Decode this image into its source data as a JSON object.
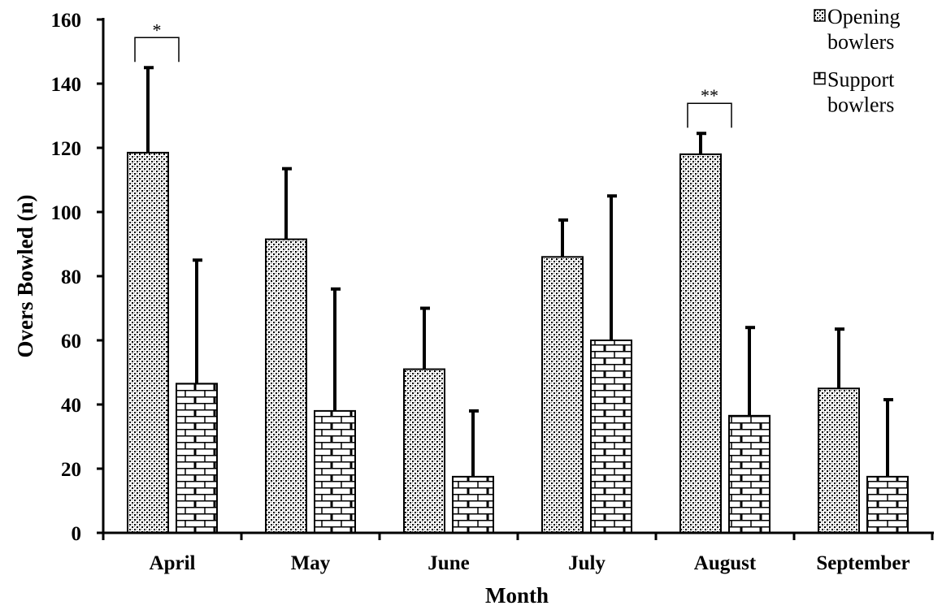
{
  "chart_data": {
    "type": "bar",
    "title": "",
    "xlabel": "Month",
    "ylabel": "Overs Bowled (n)",
    "categories": [
      "April",
      "May",
      "June",
      "July",
      "August",
      "September"
    ],
    "ylim": [
      0,
      160
    ],
    "yticks": [
      0,
      20,
      40,
      60,
      80,
      100,
      120,
      140,
      160
    ],
    "grid": false,
    "legend_position": "top-right",
    "error_bars": "upper",
    "series": [
      {
        "name": "Opening bowlers",
        "legend_lines": [
          "Opening",
          "bowlers"
        ],
        "pattern": "fine-dotted-crosshatch",
        "values": [
          118.5,
          91.5,
          51,
          86,
          118,
          45
        ],
        "errors": [
          26.5,
          22,
          19,
          11.5,
          6.5,
          18.5
        ]
      },
      {
        "name": "Support bowlers",
        "legend_lines": [
          "Support",
          "bowlers"
        ],
        "pattern": "brick",
        "values": [
          46.5,
          38,
          17.5,
          60,
          36.5,
          17.5
        ],
        "errors": [
          38.5,
          38,
          20.5,
          45,
          27.5,
          24
        ]
      }
    ],
    "annotations": [
      {
        "category": "April",
        "text": "*"
      },
      {
        "category": "August",
        "text": "**"
      }
    ]
  }
}
